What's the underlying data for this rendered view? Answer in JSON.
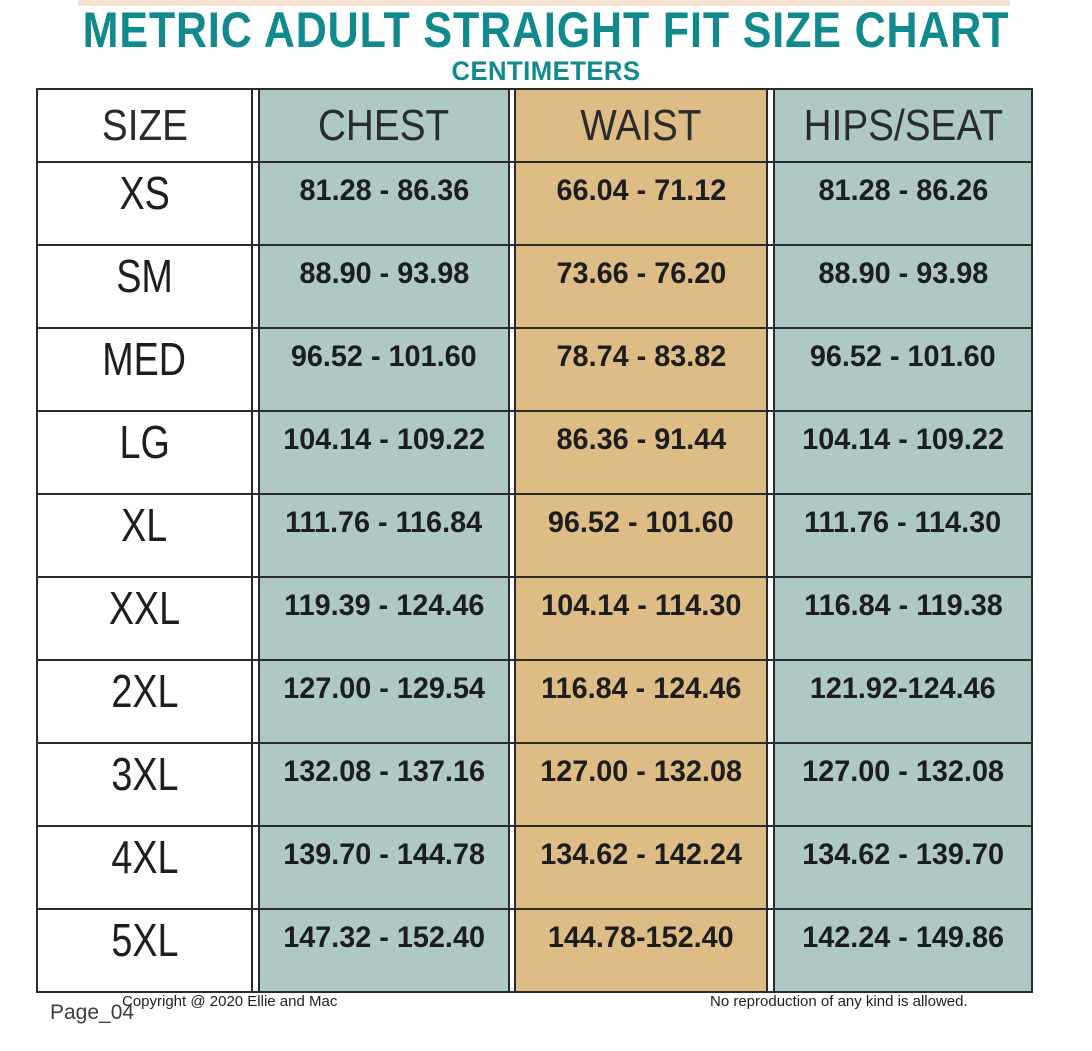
{
  "title": "METRIC ADULT STRAIGHT FIT SIZE CHART",
  "subtitle": "CENTIMETERS",
  "colors": {
    "accent_teal": "#108a8d",
    "cell_teal": "#aec9c5",
    "cell_tan": "#ddbd85",
    "top_strip": "#f6e2d2",
    "border": "#2b2b2b",
    "text": "#1d1d1d"
  },
  "table": {
    "headers": [
      "SIZE",
      "CHEST",
      "WAIST",
      "HIPS/SEAT"
    ],
    "rows": [
      {
        "size": "XS",
        "chest": "81.28 - 86.36",
        "waist": "66.04 - 71.12",
        "hips": "81.28 - 86.26"
      },
      {
        "size": "SM",
        "chest": "88.90 - 93.98",
        "waist": "73.66 - 76.20",
        "hips": "88.90 - 93.98"
      },
      {
        "size": "MED",
        "chest": "96.52 - 101.60",
        "waist": "78.74 - 83.82",
        "hips": "96.52 - 101.60"
      },
      {
        "size": "LG",
        "chest": "104.14 - 109.22",
        "waist": "86.36 - 91.44",
        "hips": "104.14 - 109.22"
      },
      {
        "size": "XL",
        "chest": "111.76 - 116.84",
        "waist": "96.52 - 101.60",
        "hips": "111.76 - 114.30"
      },
      {
        "size": "XXL",
        "chest": "119.39 - 124.46",
        "waist": "104.14 - 114.30",
        "hips": "116.84 - 119.38"
      },
      {
        "size": "2XL",
        "chest": "127.00 - 129.54",
        "waist": "116.84 - 124.46",
        "hips": "121.92-124.46"
      },
      {
        "size": "3XL",
        "chest": "132.08 - 137.16",
        "waist": "127.00 - 132.08",
        "hips": "127.00 - 132.08"
      },
      {
        "size": "4XL",
        "chest": "139.70 - 144.78",
        "waist": "134.62 - 142.24",
        "hips": "134.62 - 139.70"
      },
      {
        "size": "5XL",
        "chest": "147.32 - 152.40",
        "waist": "144.78-152.40",
        "hips": "142.24 - 149.86"
      }
    ]
  },
  "footer": {
    "page_label": "Page_04",
    "copyright": "Copyright @ 2020 Ellie and Mac",
    "notice": "No reproduction of any kind is allowed."
  }
}
